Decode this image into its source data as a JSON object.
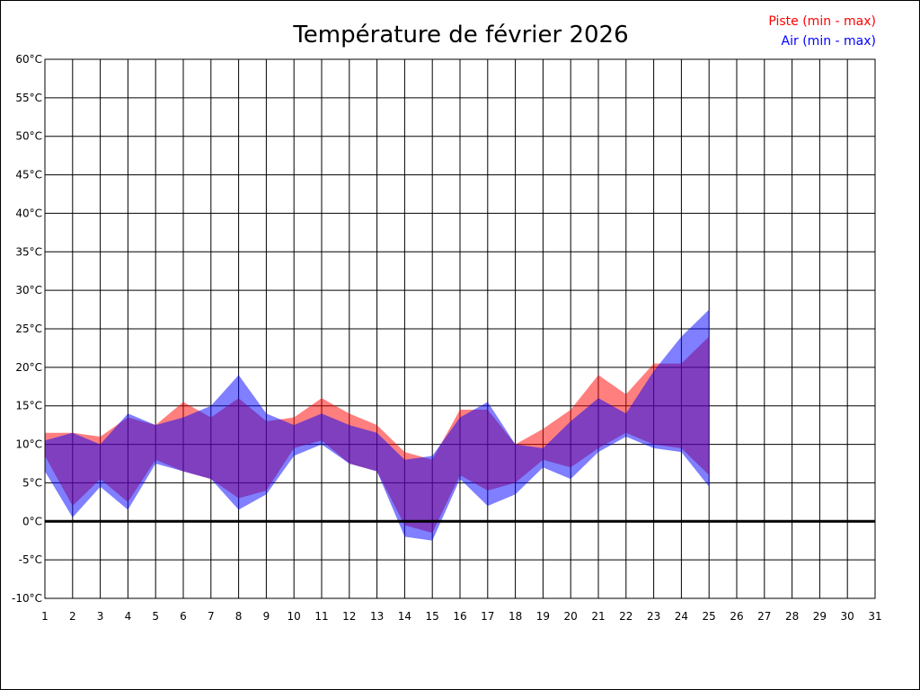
{
  "chart_data": {
    "type": "area",
    "title": "Température de février 2026",
    "xlabel": "",
    "ylabel": "",
    "unit": "°C",
    "x": [
      1,
      2,
      3,
      4,
      5,
      6,
      7,
      8,
      9,
      10,
      11,
      12,
      13,
      14,
      15,
      16,
      17,
      18,
      19,
      20,
      21,
      22,
      23,
      24,
      25,
      26,
      27,
      28,
      29,
      30,
      31
    ],
    "x_tick_labels": [
      "1",
      "2",
      "3",
      "4",
      "5",
      "6",
      "7",
      "8",
      "9",
      "10",
      "11",
      "12",
      "13",
      "14",
      "15",
      "16",
      "17",
      "18",
      "19",
      "20",
      "21",
      "22",
      "23",
      "24",
      "25",
      "26",
      "27",
      "28",
      "29",
      "30",
      "31"
    ],
    "ylim": [
      -10,
      60
    ],
    "y_ticks": [
      -10,
      -5,
      0,
      5,
      10,
      15,
      20,
      25,
      30,
      35,
      40,
      45,
      50,
      55,
      60
    ],
    "y_tick_labels": [
      "-10°C",
      "-5°C",
      "0°C",
      "5°C",
      "10°C",
      "15°C",
      "20°C",
      "25°C",
      "30°C",
      "35°C",
      "40°C",
      "45°C",
      "50°C",
      "55°C",
      "60°C"
    ],
    "grid": true,
    "legend_position": "top-right",
    "series": [
      {
        "name": "Piste (min - max)",
        "color": "#ff0000",
        "min": [
          8.5,
          2.0,
          5.5,
          2.5,
          8.0,
          6.5,
          5.5,
          3.0,
          4.0,
          9.5,
          10.5,
          7.5,
          6.5,
          -0.5,
          -1.5,
          6.0,
          4.0,
          5.0,
          8.0,
          7.0,
          9.5,
          11.5,
          10.0,
          9.5,
          6.0
        ],
        "max": [
          11.5,
          11.5,
          11.0,
          13.5,
          12.5,
          15.5,
          13.5,
          16.0,
          13.0,
          13.5,
          16.0,
          14.0,
          12.5,
          9.0,
          8.0,
          14.5,
          14.5,
          10.0,
          12.0,
          14.5,
          19.0,
          16.5,
          20.5,
          20.5,
          24.0
        ]
      },
      {
        "name": "Air (min - max)",
        "color": "#0000ff",
        "min": [
          6.5,
          0.5,
          4.5,
          1.5,
          7.5,
          6.5,
          5.5,
          1.5,
          3.5,
          8.5,
          10.0,
          7.5,
          6.5,
          -2.0,
          -2.5,
          5.5,
          2.0,
          3.5,
          7.0,
          5.5,
          9.0,
          11.0,
          9.5,
          9.0,
          4.5
        ],
        "max": [
          10.5,
          11.5,
          10.0,
          14.0,
          12.5,
          13.5,
          15.0,
          19.0,
          14.0,
          12.5,
          14.0,
          12.5,
          11.5,
          8.0,
          8.5,
          13.5,
          15.5,
          10.0,
          9.5,
          13.0,
          16.0,
          14.0,
          19.5,
          24.0,
          27.5
        ]
      }
    ]
  }
}
